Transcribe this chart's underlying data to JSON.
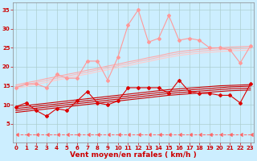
{
  "xlabel": "Vent moyen/en rafales ( km/h )",
  "background_color": "#cceeff",
  "grid_color": "#aacccc",
  "x_values": [
    0,
    1,
    2,
    3,
    4,
    5,
    6,
    7,
    8,
    9,
    10,
    11,
    12,
    13,
    14,
    15,
    16,
    17,
    18,
    19,
    20,
    21,
    22,
    23
  ],
  "series": [
    {
      "color": "#ff9999",
      "linewidth": 0.8,
      "marker": "D",
      "markersize": 2.0,
      "linestyle": "-",
      "data": [
        14.5,
        15.5,
        15.5,
        14.5,
        18.0,
        17.0,
        17.0,
        21.5,
        21.5,
        16.5,
        22.5,
        31.0,
        35.0,
        26.5,
        27.5,
        33.5,
        27.0,
        27.5,
        27.0,
        25.0,
        25.0,
        24.5,
        21.0,
        25.5
      ]
    },
    {
      "color": "#ffaaaa",
      "linewidth": 0.8,
      "marker": null,
      "linestyle": "-",
      "data": [
        15.2,
        15.8,
        16.3,
        16.9,
        17.4,
        18.0,
        18.5,
        19.1,
        19.6,
        20.2,
        20.7,
        21.3,
        21.8,
        22.4,
        22.9,
        23.5,
        24.0,
        24.3,
        24.6,
        24.8,
        25.0,
        25.2,
        25.3,
        25.4
      ]
    },
    {
      "color": "#ffbbbb",
      "linewidth": 0.8,
      "marker": null,
      "linestyle": "-",
      "data": [
        14.8,
        15.3,
        15.9,
        16.4,
        17.0,
        17.5,
        18.1,
        18.6,
        19.2,
        19.7,
        20.3,
        20.8,
        21.4,
        21.9,
        22.5,
        23.0,
        23.5,
        23.8,
        24.1,
        24.3,
        24.5,
        24.7,
        24.8,
        24.9
      ]
    },
    {
      "color": "#ffcccc",
      "linewidth": 0.8,
      "marker": null,
      "linestyle": "-",
      "data": [
        14.3,
        14.8,
        15.4,
        15.9,
        16.5,
        17.0,
        17.6,
        18.1,
        18.7,
        19.2,
        19.8,
        20.3,
        20.9,
        21.4,
        22.0,
        22.5,
        23.0,
        23.3,
        23.6,
        23.8,
        24.0,
        24.2,
        24.3,
        24.4
      ]
    },
    {
      "color": "#dd0000",
      "linewidth": 0.8,
      "marker": "D",
      "markersize": 2.0,
      "linestyle": "-",
      "data": [
        9.5,
        10.5,
        8.5,
        7.0,
        9.0,
        8.5,
        11.0,
        13.5,
        10.5,
        10.0,
        11.0,
        14.5,
        14.5,
        14.5,
        14.5,
        13.0,
        16.5,
        13.5,
        13.0,
        13.0,
        12.5,
        12.5,
        10.5,
        15.5
      ]
    },
    {
      "color": "#cc0000",
      "linewidth": 0.8,
      "marker": null,
      "linestyle": "-",
      "data": [
        9.5,
        9.8,
        10.1,
        10.4,
        10.7,
        11.0,
        11.3,
        11.6,
        11.9,
        12.2,
        12.5,
        12.8,
        13.1,
        13.4,
        13.7,
        14.0,
        14.2,
        14.4,
        14.6,
        14.8,
        15.0,
        15.1,
        15.2,
        15.3
      ]
    },
    {
      "color": "#cc0000",
      "linewidth": 0.8,
      "marker": null,
      "linestyle": "-",
      "data": [
        9.0,
        9.3,
        9.6,
        9.9,
        10.2,
        10.5,
        10.8,
        11.1,
        11.4,
        11.7,
        12.0,
        12.3,
        12.6,
        12.9,
        13.2,
        13.5,
        13.7,
        13.9,
        14.1,
        14.3,
        14.5,
        14.7,
        14.8,
        14.9
      ]
    },
    {
      "color": "#cc0000",
      "linewidth": 0.8,
      "marker": null,
      "linestyle": "-",
      "data": [
        8.5,
        8.8,
        9.1,
        9.4,
        9.7,
        10.0,
        10.3,
        10.6,
        10.9,
        11.2,
        11.5,
        11.8,
        12.1,
        12.4,
        12.7,
        13.0,
        13.2,
        13.4,
        13.6,
        13.8,
        14.0,
        14.2,
        14.3,
        14.4
      ]
    },
    {
      "color": "#cc0000",
      "linewidth": 0.8,
      "marker": null,
      "linestyle": "-",
      "data": [
        8.0,
        8.3,
        8.6,
        8.9,
        9.2,
        9.5,
        9.8,
        10.1,
        10.4,
        10.7,
        11.0,
        11.3,
        11.6,
        11.9,
        12.2,
        12.5,
        12.7,
        12.9,
        13.1,
        13.3,
        13.5,
        13.7,
        13.8,
        13.9
      ]
    },
    {
      "color": "#ff6666",
      "linewidth": 0.7,
      "marker": 4,
      "markersize": 3.0,
      "linestyle": "--",
      "data": [
        2.2,
        2.2,
        2.2,
        2.2,
        2.2,
        2.2,
        2.2,
        2.2,
        2.2,
        2.2,
        2.2,
        2.2,
        2.2,
        2.2,
        2.2,
        2.2,
        2.2,
        2.2,
        2.2,
        2.2,
        2.2,
        2.2,
        2.2,
        2.2
      ]
    }
  ],
  "ylim": [
    0,
    37
  ],
  "xlim": [
    -0.3,
    23.3
  ],
  "yticks": [
    5,
    10,
    15,
    20,
    25,
    30,
    35
  ],
  "xticks": [
    0,
    1,
    2,
    3,
    4,
    5,
    6,
    7,
    8,
    9,
    10,
    11,
    12,
    13,
    14,
    15,
    16,
    17,
    18,
    19,
    20,
    21,
    22,
    23
  ],
  "tick_color": "#cc0000",
  "label_color": "#cc0000",
  "label_fontsize": 6.5,
  "tick_fontsize": 5.0
}
